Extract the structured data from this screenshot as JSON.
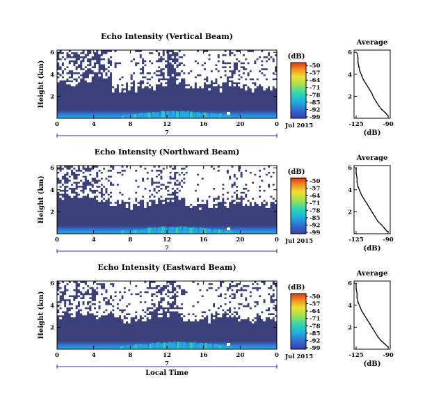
{
  "chart_data": [
    {
      "type": "heatmap",
      "title": "Echo Intensity (Vertical Beam)",
      "ylabel": "Height (km)",
      "yticks": [
        "6",
        "4",
        "2"
      ],
      "xticks": [
        "0",
        "4",
        "8",
        "12",
        "16",
        "20",
        "0"
      ],
      "date_label": "7",
      "month_label": "Jul 2015",
      "colorbar": {
        "unit": "(dB)",
        "labels": [
          "-50",
          "-57",
          "-64",
          "-71",
          "-78",
          "-85",
          "-92",
          "-99"
        ],
        "range": [
          -99,
          -50
        ]
      },
      "average": {
        "title": "Average",
        "xlabel": "(dB)",
        "xticks": [
          "-125",
          "-90"
        ],
        "yticks": [
          "6",
          "4",
          "2"
        ],
        "profile": [
          [
            -90,
            0.2
          ],
          [
            -93,
            0.5
          ],
          [
            -97,
            0.8
          ],
          [
            -100,
            1.1
          ],
          [
            -103,
            1.5
          ],
          [
            -106,
            1.9
          ],
          [
            -108,
            2.3
          ],
          [
            -111,
            2.7
          ],
          [
            -114,
            3.1
          ],
          [
            -117,
            3.5
          ],
          [
            -119,
            3.9
          ],
          [
            -121,
            4.3
          ],
          [
            -122,
            4.7
          ],
          [
            -123,
            5.1
          ],
          [
            -123,
            5.5
          ],
          [
            -124,
            5.9
          ]
        ]
      }
    },
    {
      "type": "heatmap",
      "title": "Echo Intensity (Northward Beam)",
      "ylabel": "Height (km)",
      "yticks": [
        "6",
        "4",
        "2"
      ],
      "xticks": [
        "0",
        "4",
        "8",
        "12",
        "16",
        "20",
        "0"
      ],
      "date_label": "7",
      "month_label": "Jul 2015",
      "colorbar": {
        "unit": "(dB)",
        "labels": [
          "-50",
          "-57",
          "-64",
          "-71",
          "-78",
          "-85",
          "-92",
          "-99"
        ],
        "range": [
          -99,
          -50
        ]
      },
      "average": {
        "title": "Average",
        "xlabel": "(dB)",
        "xticks": [
          "-125",
          "-90"
        ],
        "yticks": [
          "6",
          "4",
          "2"
        ],
        "profile": [
          [
            -91,
            0.2
          ],
          [
            -94,
            0.5
          ],
          [
            -97,
            0.8
          ],
          [
            -101,
            1.1
          ],
          [
            -104,
            1.5
          ],
          [
            -107,
            1.9
          ],
          [
            -110,
            2.3
          ],
          [
            -113,
            2.7
          ],
          [
            -116,
            3.1
          ],
          [
            -119,
            3.5
          ],
          [
            -121,
            3.9
          ],
          [
            -123,
            4.3
          ],
          [
            -124,
            4.7
          ],
          [
            -124,
            5.1
          ],
          [
            -125,
            5.5
          ],
          [
            -125,
            5.9
          ]
        ]
      }
    },
    {
      "type": "heatmap",
      "title": "Echo Intensity (Eastward Beam)",
      "ylabel": "Height (km)",
      "yticks": [
        "6",
        "4",
        "2"
      ],
      "xticks": [
        "0",
        "4",
        "8",
        "12",
        "16",
        "20",
        "0"
      ],
      "date_label": "7",
      "month_label": "Jul 2015",
      "xlabel": "Local Time",
      "colorbar": {
        "unit": "(dB)",
        "labels": [
          "-50",
          "-57",
          "-64",
          "-71",
          "-78",
          "-85",
          "-92",
          "-99"
        ],
        "range": [
          -99,
          -50
        ]
      },
      "average": {
        "title": "Average",
        "xlabel": "(dB)",
        "xticks": [
          "-125",
          "-90"
        ],
        "yticks": [
          "6",
          "4",
          "2"
        ],
        "profile": [
          [
            -90,
            0.2
          ],
          [
            -94,
            0.5
          ],
          [
            -98,
            0.8
          ],
          [
            -101,
            1.1
          ],
          [
            -104,
            1.5
          ],
          [
            -107,
            1.9
          ],
          [
            -110,
            2.3
          ],
          [
            -113,
            2.7
          ],
          [
            -116,
            3.1
          ],
          [
            -119,
            3.5
          ],
          [
            -121,
            3.9
          ],
          [
            -123,
            4.3
          ],
          [
            -124,
            4.7
          ],
          [
            -124,
            5.1
          ],
          [
            -125,
            5.5
          ],
          [
            -125,
            5.9
          ]
        ]
      }
    }
  ],
  "colors": {
    "background_echo": "#3b3f7a",
    "missing": "#ffffff",
    "axis": "#000000",
    "date_axis": "#3030b0",
    "colormap": [
      "#3a3fa8",
      "#2f6fd0",
      "#1fb0e0",
      "#30d8b0",
      "#a0e050",
      "#f0e030",
      "#f09020",
      "#e03a10"
    ]
  }
}
